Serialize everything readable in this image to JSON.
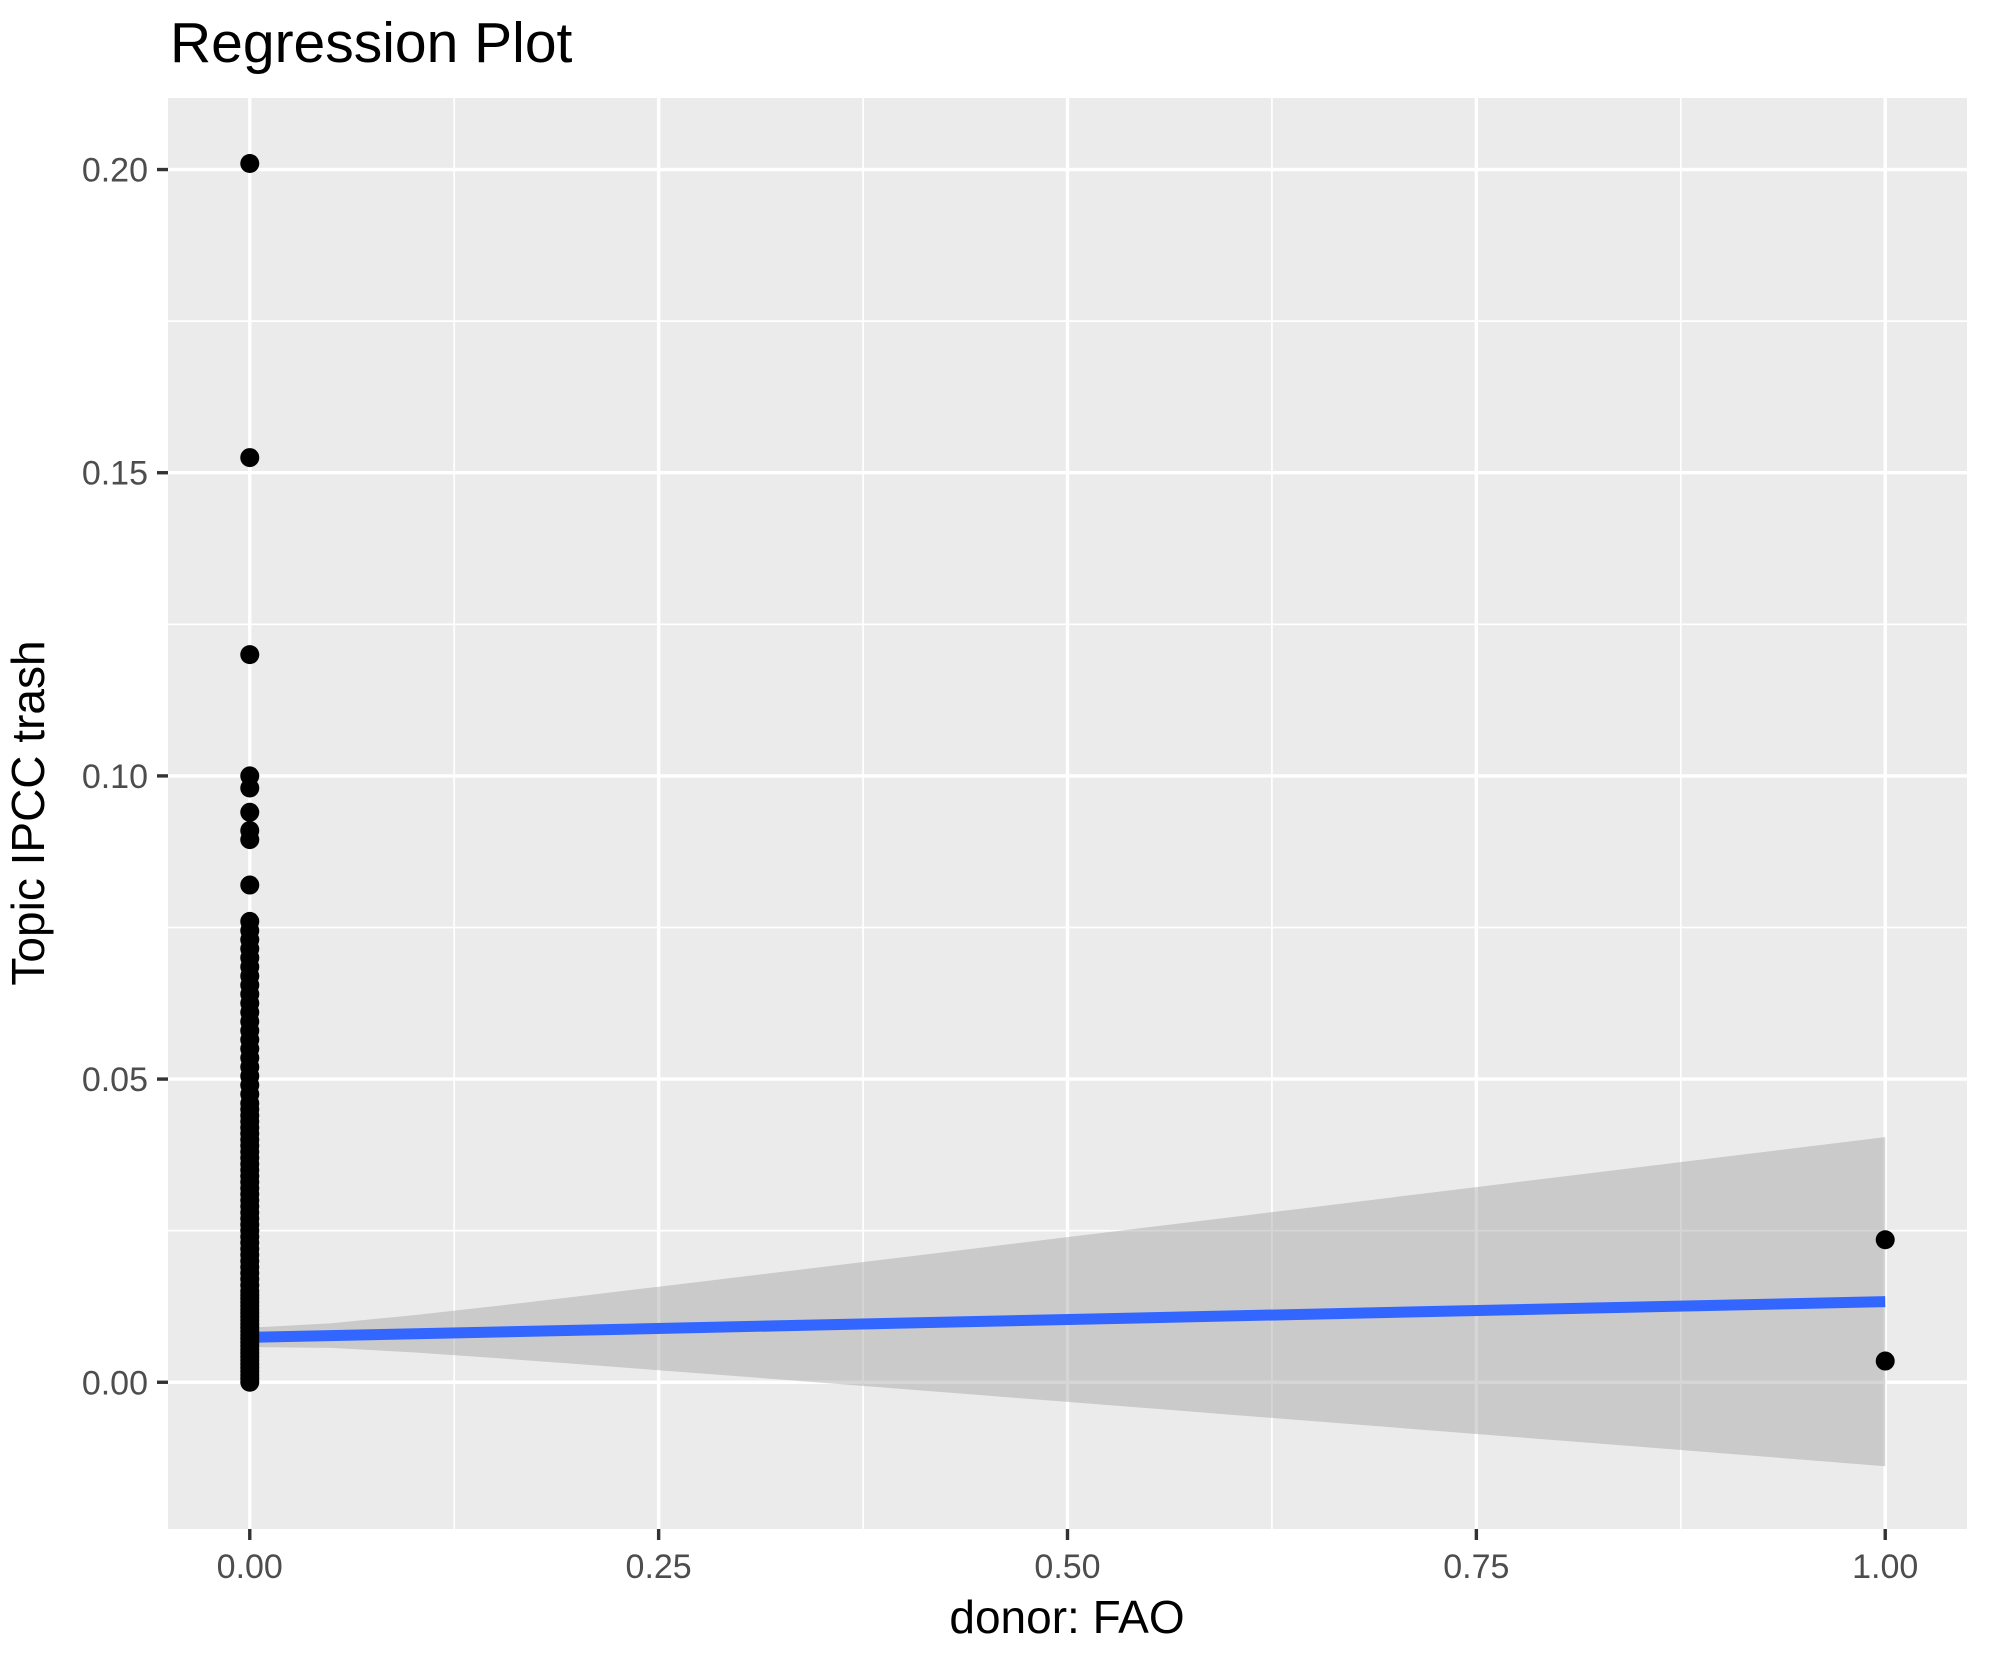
{
  "chart_data": {
    "type": "scatter",
    "title": "Regression Plot",
    "xlabel": "donor: FAO",
    "ylabel": "Topic IPCC trash",
    "xlim": [
      -0.05,
      1.05
    ],
    "ylim": [
      -0.0242,
      0.2118
    ],
    "x_ticks": [
      0.0,
      0.25,
      0.5,
      0.75,
      1.0
    ],
    "x_tick_labels": [
      "0.00",
      "0.25",
      "0.50",
      "0.75",
      "1.00"
    ],
    "y_ticks": [
      0.0,
      0.05,
      0.1,
      0.15,
      0.2
    ],
    "y_tick_labels": [
      "0.00",
      "0.05",
      "0.10",
      "0.15",
      "0.20"
    ],
    "x_minor_ticks": [
      0.125,
      0.375,
      0.625,
      0.875
    ],
    "y_minor_ticks": [
      0.025,
      0.075,
      0.125,
      0.175
    ],
    "grid": "on",
    "legend": "none",
    "series": [
      {
        "name": "observations",
        "marker": "filled-circle",
        "points_at_x0": [
          0.201,
          0.1525,
          0.12,
          0.1,
          0.098,
          0.094,
          0.091,
          0.0895,
          0.082,
          0.076,
          0.0745,
          0.073,
          0.0715,
          0.07,
          0.0685,
          0.067,
          0.0655,
          0.064,
          0.0625,
          0.061,
          0.0595,
          0.058,
          0.0565,
          0.055,
          0.0535,
          0.052,
          0.0505,
          0.049,
          0.0475,
          0.046,
          0.045,
          0.044,
          0.043,
          0.042,
          0.041,
          0.04,
          0.039,
          0.038,
          0.037,
          0.036,
          0.035,
          0.034,
          0.033,
          0.032,
          0.031,
          0.03,
          0.029,
          0.028,
          0.027,
          0.026,
          0.025,
          0.024,
          0.023,
          0.022,
          0.021,
          0.02,
          0.019,
          0.018,
          0.017,
          0.016,
          0.015,
          0.0144,
          0.0138,
          0.0132,
          0.0126,
          0.012,
          0.0114,
          0.0108,
          0.0102,
          0.0096,
          0.009,
          0.0084,
          0.0078,
          0.0072,
          0.0066,
          0.006,
          0.0054,
          0.0048,
          0.0042,
          0.0036,
          0.003,
          0.0024,
          0.0018,
          0.0012,
          0.0006,
          0.0
        ],
        "points_at_x1": [
          0.0235,
          0.0035
        ]
      }
    ],
    "regression_line": {
      "x_start": 0.0,
      "y_start": 0.0074,
      "x_end": 1.0,
      "y_end": 0.0133
    },
    "confidence_band": {
      "x_start": 0.0,
      "x_end": 1.0,
      "x_mean": 0.004,
      "half_width_at_center": 0.0016,
      "half_width_slope": 0.0272,
      "range_at_x0": [
        0.0058,
        0.009
      ],
      "range_at_x1": [
        -0.0138,
        0.0404
      ]
    },
    "colors": {
      "background": "#ffffff",
      "panel": "#ebebeb",
      "gridline": "#ffffff",
      "tick_mark": "#333333",
      "tick_label": "#4d4d4d",
      "title_text": "#000000",
      "point": "#000000",
      "regression_line": "#3366ff",
      "band_fill": "rgba(153,153,153,0.4)"
    }
  }
}
